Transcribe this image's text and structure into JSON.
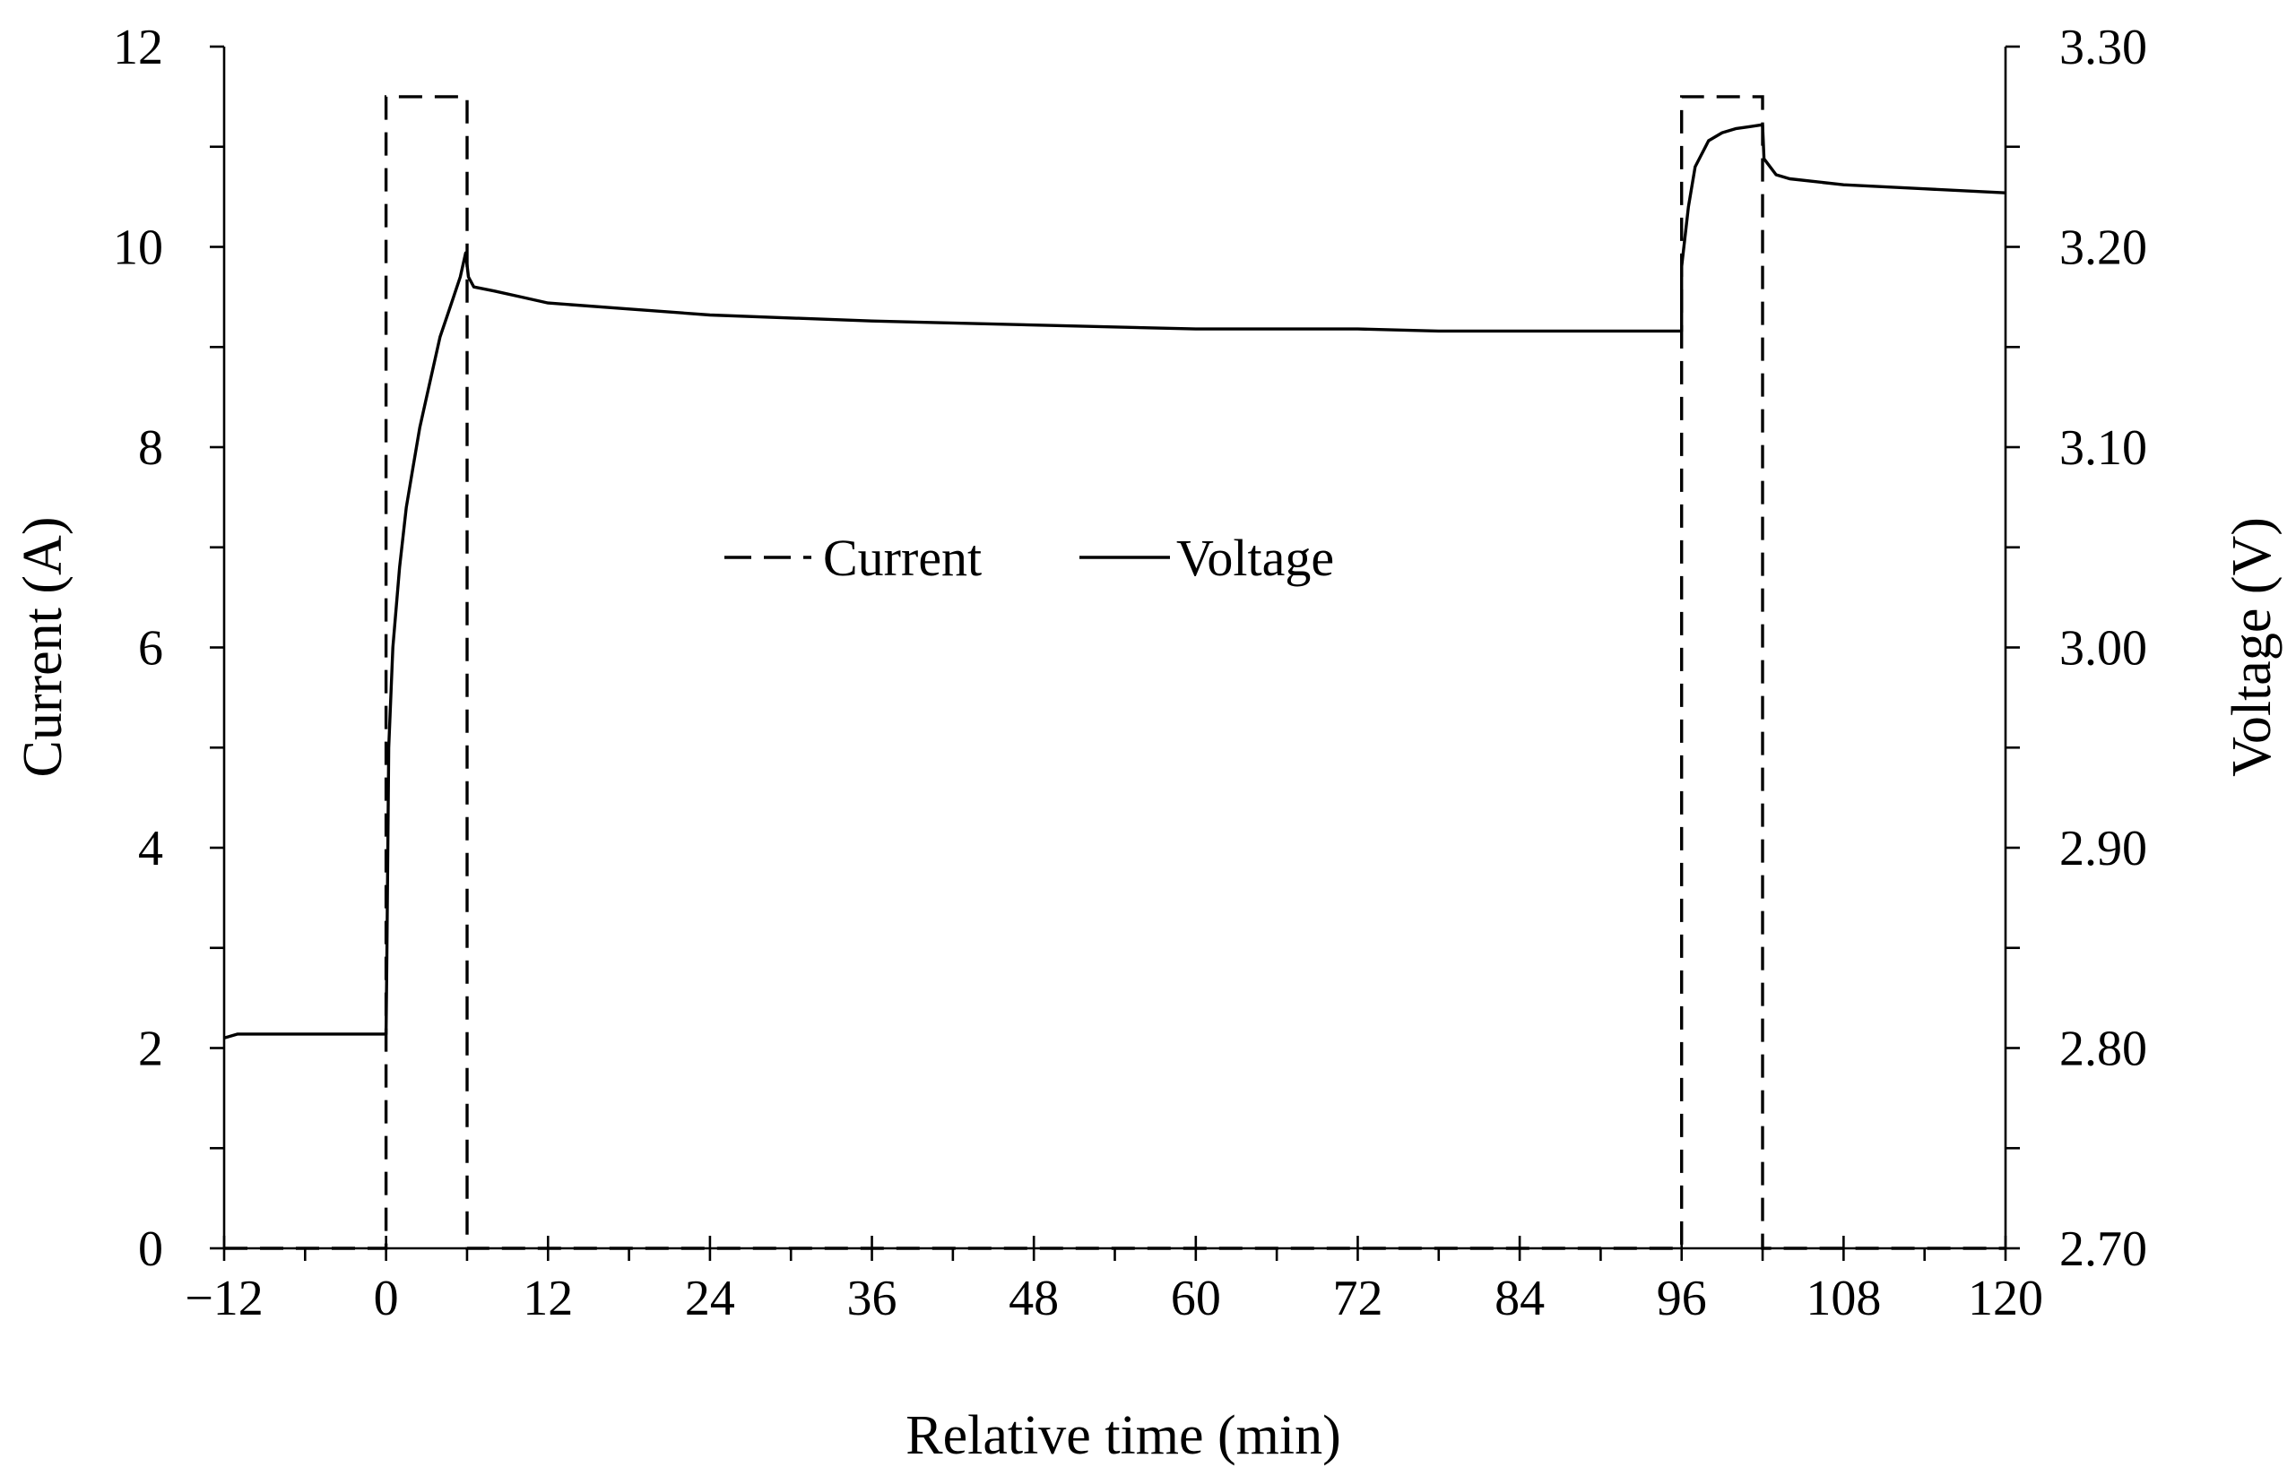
{
  "chart_data": {
    "type": "line",
    "xlabel": "Relative time (min)",
    "ylabel_left": "Current (A)",
    "ylabel_right": "Voltage (V)",
    "xlim": [
      -12,
      120
    ],
    "ylim_left": [
      0,
      12
    ],
    "ylim_right": [
      2.7,
      3.3
    ],
    "x_ticks": [
      "−12",
      "0",
      "12",
      "24",
      "36",
      "48",
      "60",
      "72",
      "84",
      "96",
      "108",
      "120"
    ],
    "y_left_ticks": [
      "0",
      "2",
      "4",
      "6",
      "8",
      "10",
      "12"
    ],
    "y_right_ticks": [
      "2.70",
      "2.80",
      "2.90",
      "3.00",
      "3.10",
      "3.20",
      "3.30"
    ],
    "grid": false,
    "legend": {
      "placement": "center-left",
      "entries": [
        {
          "label": "Current",
          "style": "dashed"
        },
        {
          "label": "Voltage",
          "style": "solid"
        }
      ]
    },
    "series": [
      {
        "name": "Current",
        "axis": "left",
        "style": "dashed",
        "x": [
          -12,
          0,
          0,
          6,
          6,
          96,
          96,
          102,
          102,
          120
        ],
        "y": [
          0,
          0,
          11.5,
          11.5,
          0,
          0,
          11.5,
          11.5,
          0,
          0
        ]
      },
      {
        "name": "Voltage",
        "axis": "right",
        "style": "solid",
        "x": [
          -12,
          -11,
          0,
          0.05,
          0.2,
          0.5,
          1,
          1.5,
          2,
          2.5,
          3,
          3.5,
          4,
          4.5,
          5,
          5.5,
          5.9,
          6.1,
          6.5,
          8,
          10,
          12,
          18,
          24,
          36,
          48,
          60,
          72,
          78,
          84,
          96,
          96,
          96.5,
          97,
          98,
          99,
          100,
          101,
          102,
          102.1,
          103,
          104,
          108,
          114,
          120
        ],
        "y": [
          2.805,
          2.807,
          2.807,
          2.84,
          2.95,
          3.0,
          3.04,
          3.07,
          3.09,
          3.11,
          3.125,
          3.14,
          3.155,
          3.165,
          3.175,
          3.185,
          3.197,
          3.185,
          3.18,
          3.178,
          3.175,
          3.172,
          3.169,
          3.166,
          3.163,
          3.161,
          3.159,
          3.159,
          3.158,
          3.158,
          3.158,
          3.19,
          3.22,
          3.24,
          3.253,
          3.257,
          3.259,
          3.26,
          3.261,
          3.244,
          3.236,
          3.234,
          3.231,
          3.229,
          3.227
        ]
      }
    ]
  }
}
